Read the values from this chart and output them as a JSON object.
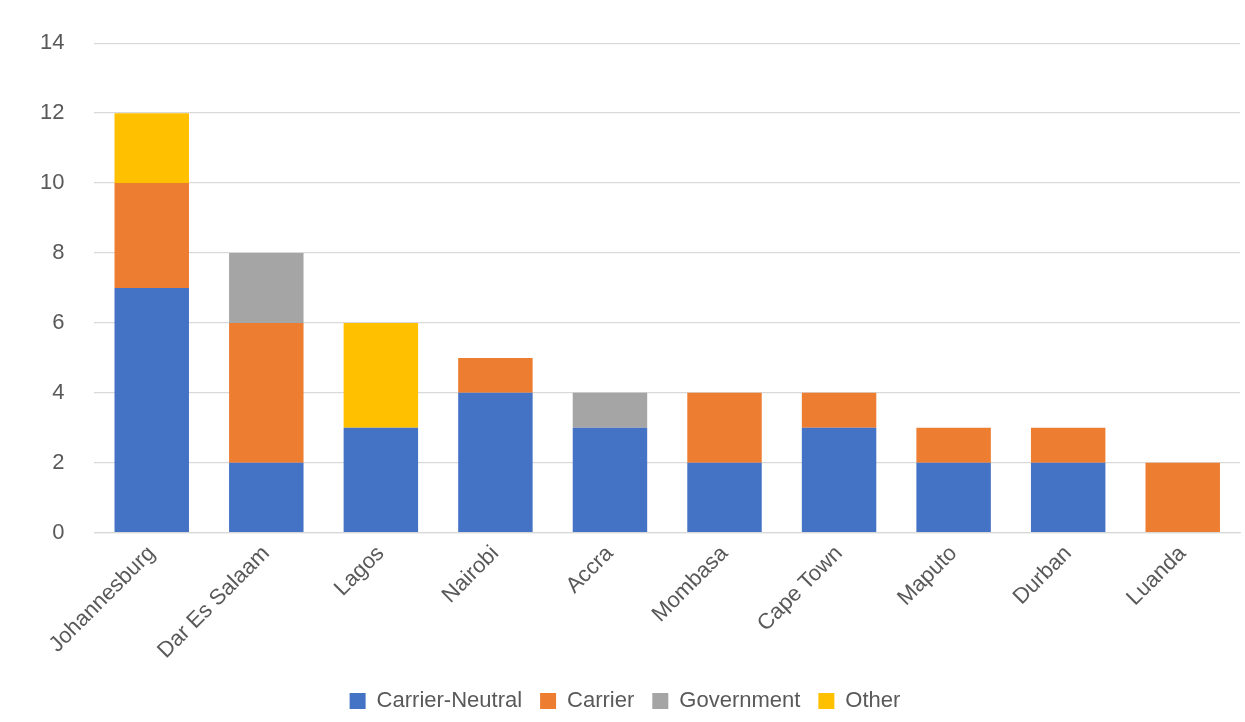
{
  "chart_data": {
    "type": "bar",
    "stacked": true,
    "categories": [
      "Johannesburg",
      "Dar Es Salaam",
      "Lagos",
      "Nairobi",
      "Accra",
      "Mombasa",
      "Cape Town",
      "Maputo",
      "Durban",
      "Luanda"
    ],
    "series": [
      {
        "name": "Carrier-Neutral",
        "color": "#4472c4",
        "values": [
          7,
          2,
          3,
          4,
          3,
          2,
          3,
          2,
          2,
          0
        ]
      },
      {
        "name": "Carrier",
        "color": "#ed7d31",
        "values": [
          3,
          4,
          0,
          1,
          0,
          2,
          1,
          1,
          1,
          2
        ]
      },
      {
        "name": "Government",
        "color": "#a5a5a5",
        "values": [
          0,
          2,
          0,
          0,
          1,
          0,
          0,
          0,
          0,
          0
        ]
      },
      {
        "name": "Other",
        "color": "#ffc000",
        "values": [
          2,
          0,
          3,
          0,
          0,
          0,
          0,
          0,
          0,
          0
        ]
      }
    ],
    "ylim": [
      0,
      14
    ],
    "yticks": [
      0,
      2,
      4,
      6,
      8,
      10,
      12,
      14
    ],
    "grid": "y",
    "legend": "bottom"
  }
}
